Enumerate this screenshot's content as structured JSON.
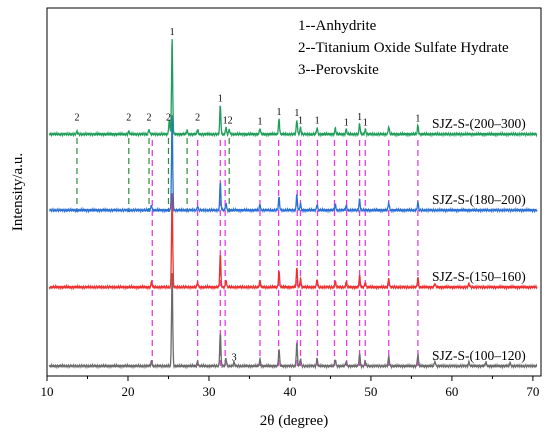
{
  "chart_data": {
    "type": "line",
    "xlabel": "2θ (degree)",
    "ylabel": "Intensity/a.u.",
    "xlim": [
      10,
      71
    ],
    "x_ticks": [
      10,
      20,
      30,
      40,
      50,
      60,
      70
    ],
    "grid": false,
    "legend": {
      "placement": "top-right",
      "entries": [
        "1--Anhydrite",
        "2--Titanium Oxide Sulfate Hydrate",
        "3--Perovskite"
      ]
    },
    "series": [
      {
        "name": "SJZ-S-(100–120)",
        "color": "#6b6b6b",
        "baseline": 0,
        "peaks": [
          [
            22.9,
            0.05
          ],
          [
            25.45,
            1.0
          ],
          [
            28.6,
            0.05
          ],
          [
            31.4,
            0.35
          ],
          [
            32.1,
            0.08
          ],
          [
            33.1,
            0.04
          ],
          [
            36.3,
            0.07
          ],
          [
            38.65,
            0.18
          ],
          [
            40.85,
            0.24
          ],
          [
            41.3,
            0.08
          ],
          [
            43.35,
            0.08
          ],
          [
            45.6,
            0.07
          ],
          [
            46.95,
            0.05
          ],
          [
            48.6,
            0.13
          ],
          [
            49.3,
            0.05
          ],
          [
            52.2,
            0.1
          ],
          [
            55.8,
            0.12
          ],
          [
            57.9,
            0.05
          ],
          [
            62.1,
            0.04
          ],
          [
            64.2,
            0.04
          ],
          [
            67.2,
            0.03
          ]
        ]
      },
      {
        "name": "SJZ-S-(150–160)",
        "color": "#ee3030",
        "baseline": 0.83,
        "peaks": [
          [
            22.9,
            0.05
          ],
          [
            25.45,
            1.0
          ],
          [
            28.6,
            0.05
          ],
          [
            31.4,
            0.34
          ],
          [
            32.1,
            0.08
          ],
          [
            36.3,
            0.07
          ],
          [
            38.65,
            0.17
          ],
          [
            40.85,
            0.2
          ],
          [
            41.3,
            0.09
          ],
          [
            43.35,
            0.08
          ],
          [
            45.6,
            0.06
          ],
          [
            46.95,
            0.06
          ],
          [
            48.6,
            0.12
          ],
          [
            49.3,
            0.05
          ],
          [
            52.2,
            0.09
          ],
          [
            55.8,
            0.1
          ],
          [
            57.9,
            0.04
          ],
          [
            62.1,
            0.04
          ]
        ]
      },
      {
        "name": "SJZ-S-(180–200)",
        "color": "#2a6fd6",
        "baseline": 1.64,
        "peaks": [
          [
            22.9,
            0.05
          ],
          [
            25.45,
            1.0
          ],
          [
            28.6,
            0.04
          ],
          [
            31.4,
            0.28
          ],
          [
            32.1,
            0.07
          ],
          [
            36.3,
            0.06
          ],
          [
            38.65,
            0.14
          ],
          [
            40.85,
            0.16
          ],
          [
            41.3,
            0.07
          ],
          [
            43.35,
            0.06
          ],
          [
            45.6,
            0.06
          ],
          [
            46.95,
            0.05
          ],
          [
            48.6,
            0.11
          ],
          [
            52.2,
            0.08
          ],
          [
            55.8,
            0.08
          ]
        ]
      },
      {
        "name": "SJZ-S-(200–300)",
        "color": "#1f9e5a",
        "baseline": 2.44,
        "peaks": [
          [
            13.7,
            0.03
          ],
          [
            20.1,
            0.03
          ],
          [
            22.6,
            0.05
          ],
          [
            25.1,
            0.15
          ],
          [
            25.45,
            1.0
          ],
          [
            27.3,
            0.04
          ],
          [
            28.6,
            0.05
          ],
          [
            31.4,
            0.3
          ],
          [
            32.1,
            0.07
          ],
          [
            32.5,
            0.05
          ],
          [
            36.3,
            0.06
          ],
          [
            38.65,
            0.16
          ],
          [
            40.85,
            0.15
          ],
          [
            41.3,
            0.07
          ],
          [
            43.35,
            0.07
          ],
          [
            45.6,
            0.06
          ],
          [
            46.95,
            0.05
          ],
          [
            48.6,
            0.11
          ],
          [
            49.3,
            0.05
          ],
          [
            52.2,
            0.08
          ],
          [
            55.8,
            0.09
          ]
        ]
      }
    ],
    "reference_lines": {
      "magenta": [
        23.0,
        28.6,
        31.4,
        32.0,
        36.3,
        38.6,
        40.9,
        41.3,
        43.4,
        45.5,
        47.0,
        48.6,
        49.3,
        52.2,
        55.8
      ],
      "green": [
        13.7,
        20.1,
        22.6,
        25.0,
        27.3,
        32.5
      ]
    },
    "annotations": [
      {
        "text": "1",
        "x": 25.45,
        "trace": 3
      },
      {
        "text": "2",
        "x": 13.7,
        "trace": 3
      },
      {
        "text": "2",
        "x": 20.1,
        "trace": 3
      },
      {
        "text": "2",
        "x": 22.6,
        "trace": 3
      },
      {
        "text": "2",
        "x": 25.0,
        "trace": 3
      },
      {
        "text": "2",
        "x": 28.6,
        "trace": 3
      },
      {
        "text": "1",
        "x": 31.4,
        "trace": 3
      },
      {
        "text": "12",
        "x": 32.3,
        "trace": 3
      },
      {
        "text": "1",
        "x": 36.3,
        "trace": 3
      },
      {
        "text": "1",
        "x": 38.65,
        "trace": 3
      },
      {
        "text": "1",
        "x": 40.85,
        "trace": 3
      },
      {
        "text": "1",
        "x": 41.3,
        "trace": 3
      },
      {
        "text": "1",
        "x": 43.35,
        "trace": 3
      },
      {
        "text": "1",
        "x": 46.95,
        "trace": 3
      },
      {
        "text": "1",
        "x": 48.6,
        "trace": 3
      },
      {
        "text": "1",
        "x": 49.3,
        "trace": 3
      },
      {
        "text": "1",
        "x": 55.8,
        "trace": 3
      },
      {
        "text": "3",
        "x": 33.1,
        "trace": 0
      }
    ]
  }
}
